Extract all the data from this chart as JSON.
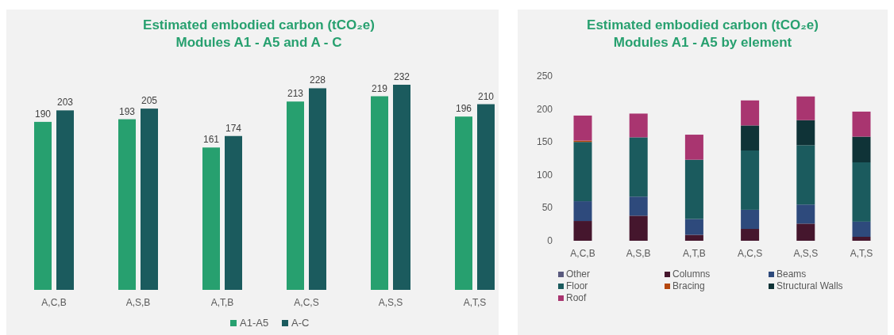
{
  "chart_data": [
    {
      "type": "bar",
      "title": "Estimated embodied carbon (tCO₂e)",
      "subtitle": "Modules A1 - A5 and A - C",
      "categories": [
        "A,C,B",
        "A,S,B",
        "A,T,B",
        "A,C,S",
        "A,S,S",
        "A,T,S"
      ],
      "series": [
        {
          "name": "A1-A5",
          "color": "#27a06f",
          "values": [
            190,
            193,
            161,
            213,
            219,
            196
          ]
        },
        {
          "name": "A-C",
          "color": "#1b5b5e",
          "values": [
            203,
            205,
            174,
            228,
            232,
            210
          ]
        }
      ],
      "data_labels": true,
      "legend": "bottom",
      "tick_labels": "x"
    },
    {
      "type": "bar",
      "title": "Estimated embodied carbon (tCO₂e)",
      "subtitle": "Modules A1 - A5 by element",
      "categories": [
        "A,C,B",
        "A,S,B",
        "A,T,B",
        "A,C,S",
        "A,S,S",
        "A,T,S"
      ],
      "stacked": true,
      "ylim": [
        0,
        250
      ],
      "yticks": [
        0,
        50,
        100,
        150,
        200,
        250
      ],
      "series": [
        {
          "name": "Other",
          "color": "#5a5a7e",
          "values": [
            0,
            0,
            0,
            0,
            0,
            0
          ]
        },
        {
          "name": "Columns",
          "color": "#45162d",
          "values": [
            30,
            38,
            9,
            18,
            26,
            6
          ]
        },
        {
          "name": "Beams",
          "color": "#2e4a7c",
          "values": [
            30,
            29,
            24,
            29,
            29,
            23
          ]
        },
        {
          "name": "Floor",
          "color": "#1b5b5e",
          "values": [
            90,
            90,
            90,
            90,
            90,
            90
          ]
        },
        {
          "name": "Bracing",
          "color": "#b5470f",
          "values": [
            2,
            0,
            0,
            0,
            0,
            0
          ]
        },
        {
          "name": "Structural Walls",
          "color": "#0f3337",
          "values": [
            0,
            0,
            0,
            38,
            38,
            39
          ]
        },
        {
          "name": "Roof",
          "color": "#a93570",
          "values": [
            38,
            36,
            38,
            38,
            36,
            38
          ]
        }
      ],
      "legend": "bottom"
    }
  ]
}
